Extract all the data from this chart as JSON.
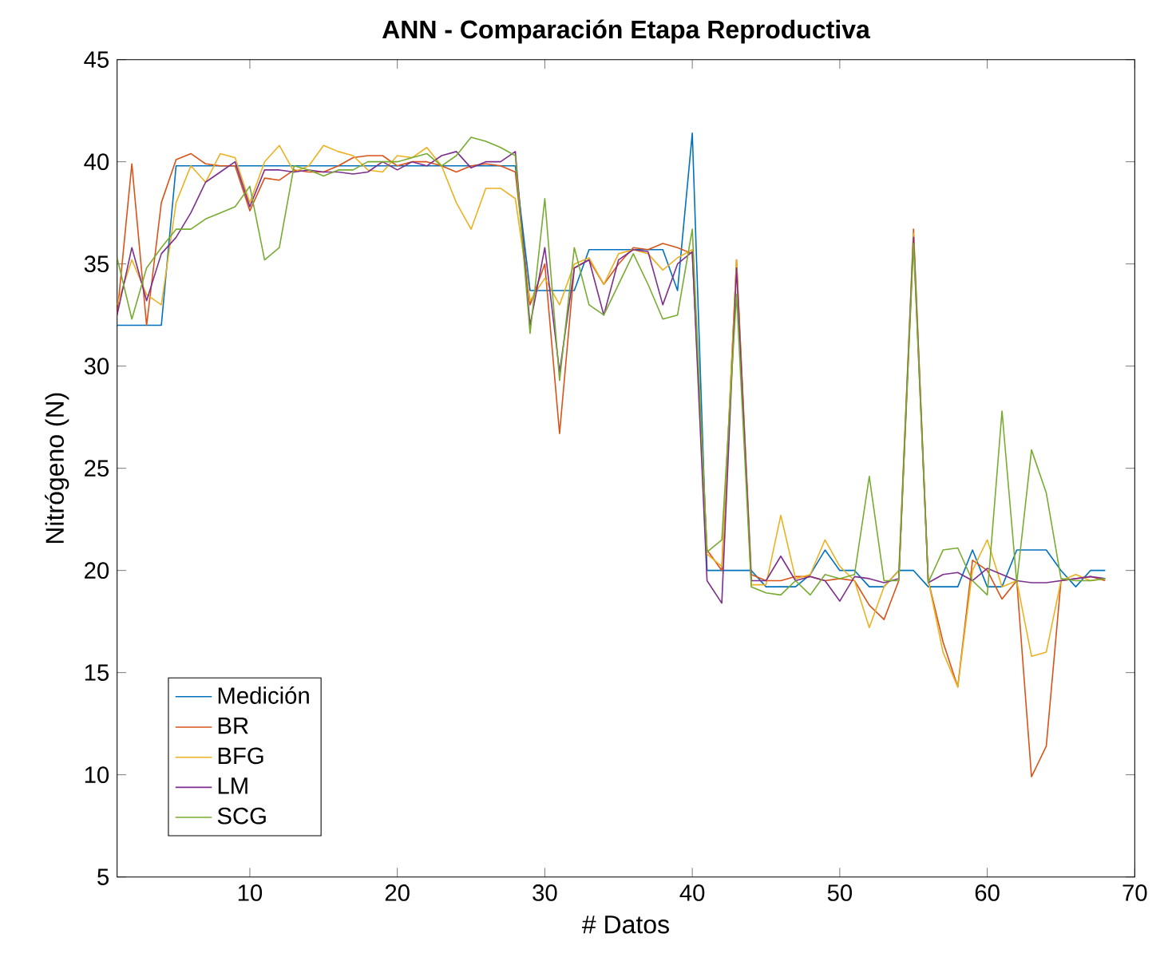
{
  "chart_data": {
    "type": "line",
    "title": "ANN - Comparación Etapa Reproductiva",
    "xlabel": "# Datos",
    "ylabel": "Nitrógeno (N)",
    "x": [
      1,
      2,
      3,
      4,
      5,
      6,
      7,
      8,
      9,
      10,
      11,
      12,
      13,
      14,
      15,
      16,
      17,
      18,
      19,
      20,
      21,
      22,
      23,
      24,
      25,
      26,
      27,
      28,
      29,
      30,
      31,
      32,
      33,
      34,
      35,
      36,
      37,
      38,
      39,
      40,
      41,
      42,
      43,
      44,
      45,
      46,
      47,
      48,
      49,
      50,
      51,
      52,
      53,
      54,
      55,
      56,
      57,
      58,
      59,
      60,
      61,
      62,
      63,
      64,
      65,
      66,
      67,
      68
    ],
    "xlim": [
      1,
      70
    ],
    "xticks": [
      10,
      20,
      30,
      40,
      50,
      60,
      70
    ],
    "ylim": [
      5,
      45
    ],
    "yticks": [
      5,
      10,
      15,
      20,
      25,
      30,
      35,
      40,
      45
    ],
    "legend": "bottom left",
    "grid": false,
    "marker": "none",
    "line_style": "solid",
    "series": [
      {
        "name": "Medición",
        "color": "#0072bd",
        "values": [
          32,
          32,
          32,
          32,
          39.8,
          39.8,
          39.8,
          39.8,
          39.8,
          39.8,
          39.8,
          39.8,
          39.8,
          39.8,
          39.8,
          39.8,
          39.8,
          39.8,
          39.8,
          39.8,
          39.8,
          39.8,
          39.8,
          39.8,
          39.8,
          39.8,
          39.8,
          39.8,
          33.7,
          33.7,
          33.7,
          33.7,
          35.7,
          35.7,
          35.7,
          35.7,
          35.7,
          35.7,
          33.7,
          41.4,
          20,
          20,
          20,
          20,
          19.2,
          19.2,
          19.2,
          19.8,
          21,
          20,
          20,
          19.2,
          19.2,
          20,
          20,
          19.2,
          19.2,
          19.2,
          21,
          19.2,
          19.2,
          21,
          21,
          21,
          20,
          19.2,
          20,
          20
        ]
      },
      {
        "name": "BR",
        "color": "#d95319",
        "values": [
          32.5,
          39.9,
          32,
          38,
          40.1,
          40.4,
          39.9,
          39.8,
          39.8,
          37.6,
          39.2,
          39.1,
          39.6,
          39.5,
          39.5,
          39.8,
          40.2,
          40.3,
          40.3,
          39.8,
          40,
          40,
          39.8,
          39.5,
          39.8,
          39.9,
          39.8,
          39.5,
          33,
          35,
          26.7,
          34.8,
          35.2,
          34,
          35,
          35.8,
          35.7,
          36,
          35.8,
          35.5,
          21,
          20,
          35.2,
          19.8,
          19.5,
          19.5,
          19.7,
          19.7,
          19.5,
          19.6,
          19.5,
          18.3,
          17.6,
          19.5,
          36.7,
          19.5,
          16.5,
          14.3,
          20.5,
          20,
          18.6,
          19.5,
          9.9,
          11.4,
          19.5,
          19.6,
          19.7,
          19.5
        ]
      },
      {
        "name": "BFG",
        "color": "#edb120",
        "values": [
          33,
          35.2,
          33.5,
          33,
          38,
          39.8,
          39,
          40.4,
          40.2,
          38,
          40,
          40.8,
          39.5,
          39.8,
          40.8,
          40.5,
          40.3,
          39.6,
          39.5,
          40.3,
          40.2,
          40.7,
          39.8,
          38,
          36.7,
          38.7,
          38.7,
          38.2,
          33.2,
          34.3,
          33,
          35,
          35.3,
          34,
          35.5,
          35.7,
          35.5,
          34.7,
          35.3,
          35.7,
          20.8,
          20.2,
          35.2,
          19.3,
          19.3,
          22.7,
          19.6,
          19.8,
          21.5,
          20.2,
          19.5,
          17.2,
          19.2,
          20,
          36.5,
          19.5,
          16,
          14.3,
          20,
          21.5,
          19.2,
          19.5,
          15.8,
          16,
          19.5,
          19.8,
          19.5,
          19.6
        ]
      },
      {
        "name": "LM",
        "color": "#7e2f8e",
        "values": [
          32.5,
          35.8,
          33.2,
          35.5,
          36.3,
          37.5,
          39,
          39.5,
          40,
          37.8,
          39.6,
          39.6,
          39.5,
          39.6,
          39.5,
          39.5,
          39.4,
          39.5,
          40,
          39.6,
          40,
          39.8,
          40.3,
          40.5,
          39.7,
          40,
          40,
          40.5,
          32,
          35.8,
          29.7,
          34.8,
          35.2,
          32.5,
          35.2,
          35.7,
          35.6,
          33,
          35,
          35.6,
          19.5,
          18.4,
          34.8,
          19.5,
          19.5,
          20.7,
          19.5,
          19.7,
          19.5,
          18.5,
          19.7,
          19.6,
          19.4,
          19.6,
          36.3,
          19.4,
          19.8,
          19.9,
          19.5,
          20.1,
          19.8,
          19.5,
          19.4,
          19.4,
          19.5,
          19.6,
          19.7,
          19.6
        ]
      },
      {
        "name": "SCG",
        "color": "#77ac30",
        "values": [
          35.3,
          32.3,
          34.8,
          35.8,
          36.7,
          36.7,
          37.2,
          37.5,
          37.8,
          38.8,
          35.2,
          35.8,
          39.8,
          39.6,
          39.3,
          39.6,
          39.6,
          40,
          40,
          40,
          40.2,
          40.4,
          39.8,
          40.3,
          41.2,
          41,
          40.7,
          40.3,
          31.6,
          38.2,
          29.3,
          35.8,
          33,
          32.5,
          34,
          35.5,
          34,
          32.3,
          32.5,
          36.7,
          20.9,
          21.5,
          33.5,
          19.2,
          18.9,
          18.8,
          19.5,
          18.8,
          19.8,
          19.6,
          19.8,
          24.6,
          19.5,
          19.5,
          36,
          19.4,
          21,
          21.1,
          19.5,
          18.8,
          27.8,
          19.4,
          25.9,
          23.8,
          19.6,
          19.5,
          19.5,
          19.6
        ]
      }
    ]
  }
}
